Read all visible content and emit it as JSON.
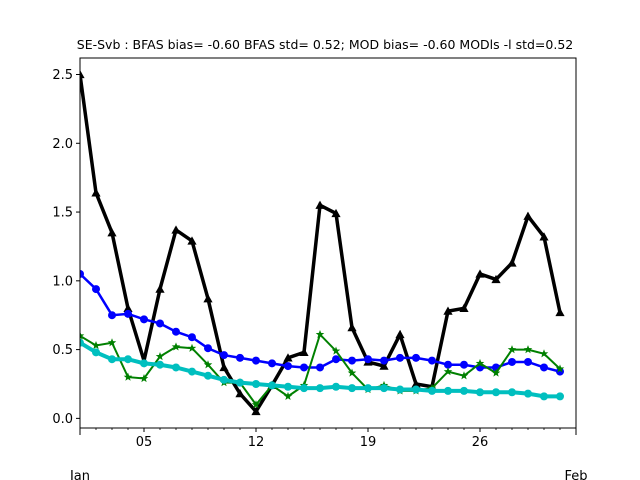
{
  "chart_data": {
    "type": "line",
    "title": "SE-Svb   : BFAS bias= -0.60 BFAS std= 0.52; MOD bias= -0.60 MODls -l std=0.52",
    "xlabel": "",
    "ylabel": "",
    "xlim": [
      1,
      32
    ],
    "ylim": [
      -0.07,
      2.62
    ],
    "grid": false,
    "x_ticks": [
      {
        "value": 5,
        "label": "05"
      },
      {
        "value": 12,
        "label": "12"
      },
      {
        "value": 19,
        "label": "19"
      },
      {
        "value": 26,
        "label": "26"
      }
    ],
    "x_month_labels": [
      {
        "value": 1,
        "label": "Jan"
      },
      {
        "value": 32,
        "label": "Feb"
      }
    ],
    "y_ticks": [
      {
        "value": 0.0,
        "label": "0.0"
      },
      {
        "value": 0.5,
        "label": "0.5"
      },
      {
        "value": 1.0,
        "label": "1.0"
      },
      {
        "value": 1.5,
        "label": "1.5"
      },
      {
        "value": 2.0,
        "label": "2.0"
      },
      {
        "value": 2.5,
        "label": "2.5"
      }
    ],
    "x": [
      1,
      2,
      3,
      4,
      5,
      6,
      7,
      8,
      9,
      10,
      11,
      12,
      13,
      14,
      15,
      16,
      17,
      18,
      19,
      20,
      21,
      22,
      23,
      24,
      25,
      26,
      27,
      28,
      29,
      30,
      31
    ],
    "series": [
      {
        "color": "#000000",
        "marker": "triangle",
        "width": 3.5,
        "values": [
          2.5,
          1.64,
          1.35,
          0.8,
          0.42,
          0.94,
          1.37,
          1.29,
          0.87,
          0.37,
          0.18,
          0.05,
          0.24,
          0.44,
          0.48,
          1.55,
          1.49,
          0.66,
          0.41,
          0.38,
          0.61,
          0.25,
          0.23,
          0.78,
          0.8,
          1.05,
          1.01,
          1.13,
          1.47,
          1.32,
          0.77
        ]
      },
      {
        "color": "#0000ff",
        "marker": "circle",
        "width": 2.5,
        "values": [
          1.05,
          0.94,
          0.75,
          0.76,
          0.72,
          0.69,
          0.63,
          0.59,
          0.51,
          0.46,
          0.44,
          0.42,
          0.4,
          0.38,
          0.37,
          0.37,
          0.43,
          0.42,
          0.43,
          0.42,
          0.44,
          0.44,
          0.42,
          0.39,
          0.39,
          0.37,
          0.37,
          0.41,
          0.41,
          0.37,
          0.34
        ]
      },
      {
        "color": "#008000",
        "marker": "star",
        "width": 2,
        "values": [
          0.6,
          0.53,
          0.55,
          0.3,
          0.29,
          0.45,
          0.52,
          0.51,
          0.39,
          0.26,
          0.26,
          0.1,
          0.24,
          0.16,
          0.24,
          0.61,
          0.49,
          0.33,
          0.21,
          0.24,
          0.2,
          0.2,
          0.22,
          0.34,
          0.31,
          0.4,
          0.33,
          0.5,
          0.5,
          0.47,
          0.36
        ]
      },
      {
        "color": "#00bfbf",
        "marker": "circle",
        "width": 4,
        "values": [
          0.55,
          0.48,
          0.43,
          0.43,
          0.4,
          0.39,
          0.37,
          0.34,
          0.31,
          0.28,
          0.26,
          0.25,
          0.24,
          0.23,
          0.22,
          0.22,
          0.23,
          0.22,
          0.22,
          0.22,
          0.21,
          0.21,
          0.2,
          0.2,
          0.2,
          0.19,
          0.19,
          0.19,
          0.18,
          0.16,
          0.16
        ]
      }
    ]
  }
}
